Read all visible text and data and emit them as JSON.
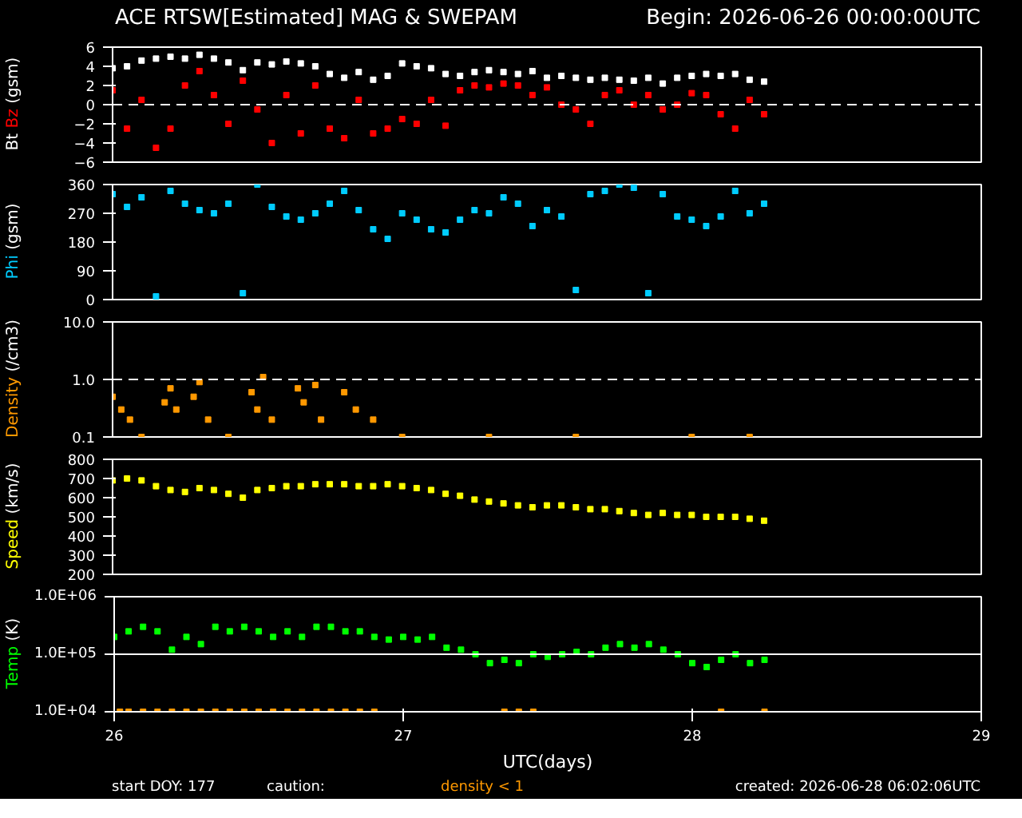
{
  "chart_data": [
    {
      "type": "scatter",
      "title": "ACE RTSW[Estimated] MAG & SWEPAM",
      "subtitle": "Begin: 2026-06-26 00:00:00UTC",
      "ylabel": "(gsm)",
      "xlim": [
        26,
        29
      ],
      "xticks": [
        26,
        27,
        28,
        29
      ],
      "ylim": [
        -6,
        6
      ],
      "yticks": [
        -6,
        -4,
        -2,
        0,
        2,
        4,
        6
      ],
      "tick_labels": "y",
      "marker": "square",
      "ref_lines": [
        {
          "axis": "y",
          "value": 0,
          "color": "#ffffff",
          "line_style": "dashed"
        }
      ],
      "series": [
        {
          "name": "Bt",
          "color": "#ffffff",
          "x": [
            26.0,
            26.05,
            26.1,
            26.15,
            26.2,
            26.25,
            26.3,
            26.35,
            26.4,
            26.45,
            26.5,
            26.55,
            26.6,
            26.65,
            26.7,
            26.75,
            26.8,
            26.85,
            26.9,
            26.95,
            27.0,
            27.05,
            27.1,
            27.15,
            27.2,
            27.25,
            27.3,
            27.35,
            27.4,
            27.45,
            27.5,
            27.55,
            27.6,
            27.65,
            27.7,
            27.75,
            27.8,
            27.85,
            27.9,
            27.95,
            28.0,
            28.05,
            28.1,
            28.15,
            28.2,
            28.25
          ],
          "values": [
            3.8,
            4.0,
            4.6,
            4.8,
            5.0,
            4.8,
            5.2,
            4.8,
            4.4,
            3.6,
            4.4,
            4.2,
            4.5,
            4.3,
            4.0,
            3.2,
            2.8,
            3.4,
            2.6,
            3.0,
            4.3,
            4.0,
            3.8,
            3.2,
            3.0,
            3.4,
            3.6,
            3.4,
            3.2,
            3.5,
            2.8,
            3.0,
            2.8,
            2.6,
            2.8,
            2.6,
            2.5,
            2.8,
            2.2,
            2.8,
            3.0,
            3.2,
            3.0,
            3.2,
            2.6,
            2.4
          ]
        },
        {
          "name": "Bz",
          "color": "#ff0000",
          "x": [
            26.0,
            26.05,
            26.1,
            26.15,
            26.2,
            26.25,
            26.3,
            26.35,
            26.4,
            26.45,
            26.5,
            26.55,
            26.6,
            26.65,
            26.7,
            26.75,
            26.8,
            26.85,
            26.9,
            26.95,
            27.0,
            27.05,
            27.1,
            27.15,
            27.2,
            27.25,
            27.3,
            27.35,
            27.4,
            27.45,
            27.5,
            27.55,
            27.6,
            27.65,
            27.7,
            27.75,
            27.8,
            27.85,
            27.9,
            27.95,
            28.0,
            28.05,
            28.1,
            28.15,
            28.2,
            28.25
          ],
          "values": [
            1.5,
            -2.5,
            0.5,
            -4.5,
            -2.5,
            2.0,
            3.5,
            1.0,
            -2.0,
            2.5,
            -0.5,
            -4.0,
            1.0,
            -3.0,
            2.0,
            -2.5,
            -3.5,
            0.5,
            -3.0,
            -2.5,
            -1.5,
            -2.0,
            0.5,
            -2.2,
            1.5,
            2.0,
            1.8,
            2.2,
            2.0,
            1.0,
            1.8,
            0.0,
            -0.5,
            -2.0,
            1.0,
            1.5,
            0.0,
            1.0,
            -0.5,
            0.0,
            1.2,
            1.0,
            -1.0,
            -2.5,
            0.5,
            -1.0
          ]
        }
      ]
    },
    {
      "type": "scatter",
      "ylabel": "(gsm)",
      "xlim": [
        26,
        29
      ],
      "xticks": [
        26,
        27,
        28,
        29
      ],
      "ylim": [
        0,
        360
      ],
      "yticks": [
        0,
        90,
        180,
        270,
        360
      ],
      "tick_labels": "y",
      "marker": "square",
      "series": [
        {
          "name": "Phi",
          "color": "#00ccff",
          "x": [
            26.0,
            26.05,
            26.1,
            26.15,
            26.2,
            26.25,
            26.3,
            26.35,
            26.4,
            26.45,
            26.5,
            26.55,
            26.6,
            26.65,
            26.7,
            26.75,
            26.8,
            26.85,
            26.9,
            26.95,
            27.0,
            27.05,
            27.1,
            27.15,
            27.2,
            27.25,
            27.3,
            27.35,
            27.4,
            27.45,
            27.5,
            27.55,
            27.6,
            27.65,
            27.7,
            27.75,
            27.8,
            27.85,
            27.9,
            27.95,
            28.0,
            28.05,
            28.1,
            28.15,
            28.2,
            28.25
          ],
          "values": [
            330,
            290,
            320,
            10,
            340,
            300,
            280,
            270,
            300,
            20,
            360,
            290,
            260,
            250,
            270,
            300,
            340,
            280,
            220,
            190,
            270,
            250,
            220,
            210,
            250,
            280,
            270,
            320,
            300,
            230,
            280,
            260,
            30,
            330,
            340,
            360,
            350,
            20,
            330,
            260,
            250,
            230,
            260,
            340,
            270,
            300
          ]
        }
      ]
    },
    {
      "type": "scatter",
      "ylabel": "(/cm3)",
      "xlim": [
        26,
        29
      ],
      "xticks": [
        26,
        27,
        28,
        29
      ],
      "ylim": [
        0.1,
        10
      ],
      "yticks": [
        {
          "value": 0.1,
          "label": "0.1"
        },
        {
          "value": 1,
          "label": "1.0"
        },
        {
          "value": 10,
          "label": "10.0"
        }
      ],
      "log": true,
      "tick_labels": "y",
      "marker": "square",
      "ref_lines": [
        {
          "axis": "y",
          "value": 1,
          "color": "#ffffff",
          "line_style": "dashed"
        }
      ],
      "series": [
        {
          "name": "Density",
          "color": "#ff9900",
          "x": [
            26.0,
            26.03,
            26.06,
            26.1,
            26.18,
            26.2,
            26.22,
            26.28,
            26.3,
            26.33,
            26.4,
            26.48,
            26.5,
            26.52,
            26.55,
            26.64,
            26.66,
            26.7,
            26.72,
            26.8,
            26.84,
            26.9,
            27.0,
            27.3,
            27.6,
            28.0,
            28.2
          ],
          "values": [
            0.5,
            0.3,
            0.2,
            0.1,
            0.4,
            0.7,
            0.3,
            0.5,
            0.9,
            0.2,
            0.1,
            0.6,
            0.3,
            1.1,
            0.2,
            0.7,
            0.4,
            0.8,
            0.2,
            0.6,
            0.3,
            0.2,
            0.1,
            0.1,
            0.1,
            0.1,
            0.1
          ]
        }
      ]
    },
    {
      "type": "scatter",
      "ylabel": "(km/s)",
      "xlim": [
        26,
        29
      ],
      "xticks": [
        26,
        27,
        28,
        29
      ],
      "ylim": [
        200,
        800
      ],
      "yticks": [
        200,
        300,
        400,
        500,
        600,
        700,
        800
      ],
      "tick_labels": "y",
      "marker": "square",
      "series": [
        {
          "name": "Speed",
          "color": "#ffff00",
          "x": [
            26.0,
            26.05,
            26.1,
            26.15,
            26.2,
            26.25,
            26.3,
            26.35,
            26.4,
            26.45,
            26.5,
            26.55,
            26.6,
            26.65,
            26.7,
            26.75,
            26.8,
            26.85,
            26.9,
            26.95,
            27.0,
            27.05,
            27.1,
            27.15,
            27.2,
            27.25,
            27.3,
            27.35,
            27.4,
            27.45,
            27.5,
            27.55,
            27.6,
            27.65,
            27.7,
            27.75,
            27.8,
            27.85,
            27.9,
            27.95,
            28.0,
            28.05,
            28.1,
            28.15,
            28.2,
            28.25
          ],
          "values": [
            690,
            700,
            690,
            660,
            640,
            630,
            650,
            640,
            620,
            600,
            640,
            650,
            660,
            660,
            670,
            670,
            670,
            660,
            660,
            670,
            660,
            650,
            640,
            620,
            610,
            590,
            580,
            570,
            560,
            550,
            560,
            560,
            550,
            540,
            540,
            530,
            520,
            510,
            520,
            510,
            510,
            500,
            500,
            500,
            490,
            480
          ]
        }
      ]
    },
    {
      "type": "scatter",
      "ylabel": "(K)",
      "xlabel": "UTC(days)",
      "xlim": [
        26,
        29
      ],
      "xticks": [
        26,
        27,
        28,
        29
      ],
      "ylim": [
        10000,
        1000000
      ],
      "yticks": [
        {
          "value": 10000,
          "label": "1.0E+04"
        },
        {
          "value": 100000,
          "label": "1.0E+05"
        },
        {
          "value": 1000000,
          "label": "1.0E+06"
        }
      ],
      "log": true,
      "marker": "square",
      "ref_lines": [
        {
          "axis": "y",
          "value": 100000,
          "color": "#ffffff",
          "line_style": "solid"
        }
      ],
      "annotations": [
        "start DOY: 177",
        "caution:",
        "created: 2026-06-28 06:02:06UTC"
      ],
      "series": [
        {
          "name": "Temp",
          "color": "#00ff00",
          "x": [
            26.0,
            26.05,
            26.1,
            26.15,
            26.2,
            26.25,
            26.3,
            26.35,
            26.4,
            26.45,
            26.5,
            26.55,
            26.6,
            26.65,
            26.7,
            26.75,
            26.8,
            26.85,
            26.9,
            26.95,
            27.0,
            27.05,
            27.1,
            27.15,
            27.2,
            27.25,
            27.3,
            27.35,
            27.4,
            27.45,
            27.5,
            27.55,
            27.6,
            27.65,
            27.7,
            27.75,
            27.8,
            27.85,
            27.9,
            27.95,
            28.0,
            28.05,
            28.1,
            28.15,
            28.2,
            28.25
          ],
          "values": [
            200000,
            250000,
            300000,
            250000,
            120000,
            200000,
            150000,
            300000,
            250000,
            300000,
            250000,
            200000,
            250000,
            200000,
            300000,
            300000,
            250000,
            250000,
            200000,
            180000,
            200000,
            180000,
            200000,
            130000,
            120000,
            100000,
            70000,
            80000,
            70000,
            100000,
            90000,
            100000,
            110000,
            100000,
            130000,
            150000,
            130000,
            150000,
            120000,
            100000,
            70000,
            60000,
            80000,
            100000,
            70000,
            80000
          ]
        },
        {
          "name": "density < 1",
          "color": "#ff9900",
          "x": [
            26.02,
            26.05,
            26.1,
            26.15,
            26.2,
            26.25,
            26.3,
            26.35,
            26.4,
            26.45,
            26.5,
            26.55,
            26.6,
            26.65,
            26.7,
            26.75,
            26.8,
            26.85,
            26.9,
            27.35,
            27.4,
            27.45,
            28.1,
            28.25
          ],
          "values": [
            10000,
            10000,
            10000,
            10000,
            10000,
            10000,
            10000,
            10000,
            10000,
            10000,
            10000,
            10000,
            10000,
            10000,
            10000,
            10000,
            10000,
            10000,
            10000,
            10000,
            10000,
            10000,
            10000,
            10000
          ]
        }
      ]
    }
  ]
}
